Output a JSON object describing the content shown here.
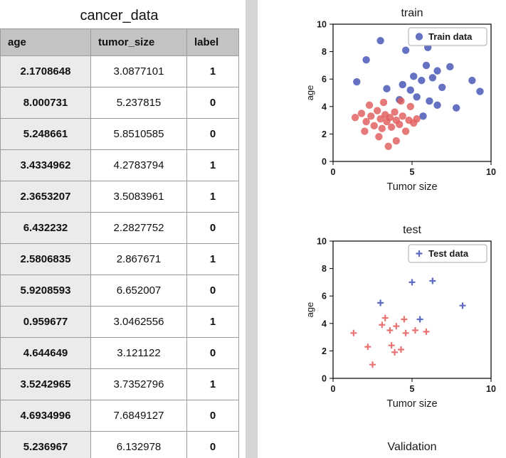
{
  "table": {
    "title": "cancer_data",
    "columns": [
      "age",
      "tumor_size",
      "label"
    ],
    "rows": [
      [
        "2.1708648",
        "3.0877101",
        "1"
      ],
      [
        "8.000731",
        "5.237815",
        "0"
      ],
      [
        "5.248661",
        "5.8510585",
        "0"
      ],
      [
        "3.4334962",
        "4.2783794",
        "1"
      ],
      [
        "2.3653207",
        "3.5083961",
        "1"
      ],
      [
        "6.432232",
        "2.2827752",
        "0"
      ],
      [
        "2.5806835",
        "2.867671",
        "1"
      ],
      [
        "5.9208593",
        "6.652007",
        "0"
      ],
      [
        "0.959677",
        "3.0462556",
        "1"
      ],
      [
        "4.644649",
        "3.121122",
        "0"
      ],
      [
        "3.5242965",
        "3.7352796",
        "1"
      ],
      [
        "4.6934996",
        "7.6849127",
        "0"
      ],
      [
        "5.236967",
        "6.132978",
        "0"
      ]
    ]
  },
  "colors": {
    "blue": "#4353b4",
    "red": "#e15b5b",
    "test_blue": "#5563c1",
    "test_red": "#e86a6a",
    "divider": "#d5d5d5",
    "header_gray": "#c3c3c3"
  },
  "chart_data": [
    {
      "type": "scatter",
      "title": "train",
      "xlabel": "Tumor size",
      "ylabel": "age",
      "xlim": [
        0,
        10
      ],
      "ylim": [
        0,
        10
      ],
      "xticks": [
        0,
        5,
        10
      ],
      "yticks": [
        0,
        2,
        4,
        6,
        8,
        10
      ],
      "grid": false,
      "legend": {
        "label": "Train data",
        "position": "upper right",
        "marker": "circle",
        "marker_color": "#4353b4"
      },
      "series": [
        {
          "name": "train-blue",
          "marker": "circle",
          "color": "#4353b4",
          "points": [
            [
              3.0,
              8.8
            ],
            [
              4.6,
              8.1
            ],
            [
              6.0,
              8.3
            ],
            [
              2.1,
              7.4
            ],
            [
              5.9,
              7.0
            ],
            [
              6.6,
              6.6
            ],
            [
              7.4,
              6.9
            ],
            [
              5.1,
              6.2
            ],
            [
              5.6,
              5.9
            ],
            [
              6.3,
              6.1
            ],
            [
              1.5,
              5.8
            ],
            [
              3.4,
              5.3
            ],
            [
              4.4,
              5.6
            ],
            [
              4.9,
              5.2
            ],
            [
              6.9,
              5.4
            ],
            [
              8.8,
              5.9
            ],
            [
              9.3,
              5.1
            ],
            [
              5.3,
              4.7
            ],
            [
              6.1,
              4.4
            ],
            [
              6.6,
              4.1
            ],
            [
              7.8,
              3.9
            ],
            [
              5.7,
              3.3
            ],
            [
              4.2,
              4.5
            ]
          ]
        },
        {
          "name": "train-red",
          "marker": "circle",
          "color": "#e15b5b",
          "points": [
            [
              1.4,
              3.2
            ],
            [
              1.8,
              3.5
            ],
            [
              2.0,
              2.2
            ],
            [
              2.1,
              2.9
            ],
            [
              2.3,
              4.1
            ],
            [
              2.4,
              3.3
            ],
            [
              2.6,
              2.6
            ],
            [
              2.8,
              3.7
            ],
            [
              2.9,
              1.8
            ],
            [
              3.0,
              3.1
            ],
            [
              3.1,
              2.4
            ],
            [
              3.2,
              4.3
            ],
            [
              3.3,
              3.4
            ],
            [
              3.4,
              2.9
            ],
            [
              3.5,
              1.1
            ],
            [
              3.6,
              3.2
            ],
            [
              3.7,
              2.5
            ],
            [
              3.9,
              3.6
            ],
            [
              4.0,
              1.5
            ],
            [
              4.0,
              3.0
            ],
            [
              4.2,
              2.7
            ],
            [
              4.3,
              4.4
            ],
            [
              4.4,
              3.3
            ],
            [
              4.6,
              2.2
            ],
            [
              4.8,
              3.0
            ],
            [
              4.9,
              4.0
            ],
            [
              5.1,
              2.8
            ],
            [
              5.3,
              3.1
            ]
          ]
        }
      ]
    },
    {
      "type": "scatter",
      "title": "test",
      "xlabel": "Tumor size",
      "ylabel": "age",
      "xlim": [
        0,
        10
      ],
      "ylim": [
        0,
        10
      ],
      "xticks": [
        0,
        5,
        10
      ],
      "yticks": [
        0,
        2,
        4,
        6,
        8,
        10
      ],
      "grid": false,
      "legend": {
        "label": "Test data",
        "position": "upper right",
        "marker": "plus",
        "marker_color": "#5563c1"
      },
      "series": [
        {
          "name": "test-red",
          "marker": "plus",
          "color": "#e86a6a",
          "points": [
            [
              1.3,
              3.3
            ],
            [
              2.2,
              2.3
            ],
            [
              2.5,
              1.0
            ],
            [
              3.1,
              3.9
            ],
            [
              3.3,
              4.4
            ],
            [
              3.6,
              3.5
            ],
            [
              3.7,
              2.4
            ],
            [
              3.9,
              1.9
            ],
            [
              4.0,
              3.8
            ],
            [
              4.3,
              2.1
            ],
            [
              4.5,
              4.3
            ],
            [
              4.6,
              3.3
            ],
            [
              5.2,
              3.5
            ],
            [
              5.9,
              3.4
            ]
          ]
        },
        {
          "name": "test-blue",
          "marker": "plus",
          "color": "#5563c1",
          "points": [
            [
              3.0,
              5.5
            ],
            [
              5.0,
              7.0
            ],
            [
              6.3,
              7.1
            ],
            [
              8.2,
              5.3
            ],
            [
              5.5,
              4.3
            ]
          ]
        }
      ]
    },
    {
      "type": "scatter",
      "title": "Validation",
      "partial": true
    }
  ]
}
